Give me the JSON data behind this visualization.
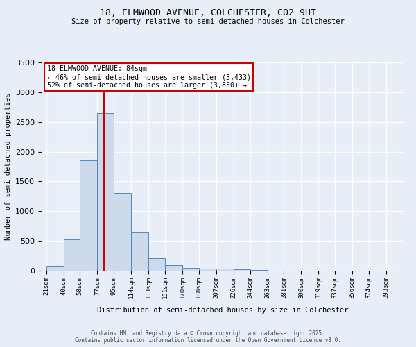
{
  "title1": "18, ELMWOOD AVENUE, COLCHESTER, CO2 9HT",
  "title2": "Size of property relative to semi-detached houses in Colchester",
  "xlabel": "Distribution of semi-detached houses by size in Colchester",
  "ylabel": "Number of semi-detached properties",
  "bin_labels": [
    "21sqm",
    "40sqm",
    "58sqm",
    "77sqm",
    "95sqm",
    "114sqm",
    "133sqm",
    "151sqm",
    "170sqm",
    "188sqm",
    "207sqm",
    "226sqm",
    "244sqm",
    "263sqm",
    "281sqm",
    "300sqm",
    "319sqm",
    "337sqm",
    "356sqm",
    "374sqm",
    "393sqm"
  ],
  "bin_edges": [
    21,
    40,
    58,
    77,
    95,
    114,
    133,
    151,
    170,
    188,
    207,
    226,
    244,
    263,
    281,
    300,
    319,
    337,
    356,
    374,
    393
  ],
  "bar_heights": [
    70,
    530,
    1850,
    2650,
    1310,
    640,
    210,
    90,
    50,
    40,
    30,
    20,
    10,
    5,
    3,
    2,
    2,
    1,
    1,
    1
  ],
  "bar_color": "#ccdaeb",
  "bar_edge_color": "#5588bb",
  "property_size": 84,
  "red_line_color": "#cc0000",
  "annotation_text": "18 ELMWOOD AVENUE: 84sqm\n← 46% of semi-detached houses are smaller (3,433)\n52% of semi-detached houses are larger (3,850) →",
  "annotation_box_color": "#ffffff",
  "annotation_box_edge": "#cc0000",
  "ylim": [
    0,
    3500
  ],
  "yticks": [
    0,
    500,
    1000,
    1500,
    2000,
    2500,
    3000,
    3500
  ],
  "bg_color": "#e8eef8",
  "grid_color": "#ffffff",
  "footer1": "Contains HM Land Registry data © Crown copyright and database right 2025.",
  "footer2": "Contains public sector information licensed under the Open Government Licence v3.0."
}
